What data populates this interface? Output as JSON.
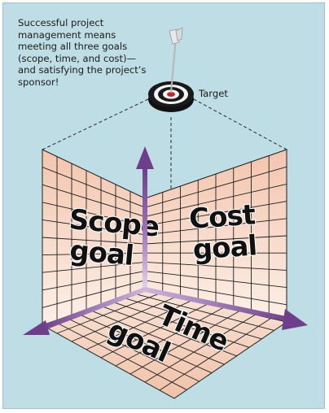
{
  "caption": "Successful project management means meeting all three goals (scope, time, and cost)—and satisfying the project’s sponsor!",
  "target_label": "Target",
  "goals": {
    "scope_line1": "Scope",
    "scope_line2": "goal",
    "cost_line1": "Cost",
    "cost_line2": "goal",
    "time_line1": "Time",
    "time_line2": "goal"
  },
  "colors": {
    "background": "#bfdde4",
    "grid_face": "#f6d9c8",
    "grid_line": "#1f1f1f",
    "axis_arrow": "#6d3f8a",
    "target_ring_dark": "#1a1a1a",
    "target_bullseye": "#c0262c"
  },
  "icons": {
    "target": "bullseye-target-icon",
    "dart": "dart-icon"
  }
}
